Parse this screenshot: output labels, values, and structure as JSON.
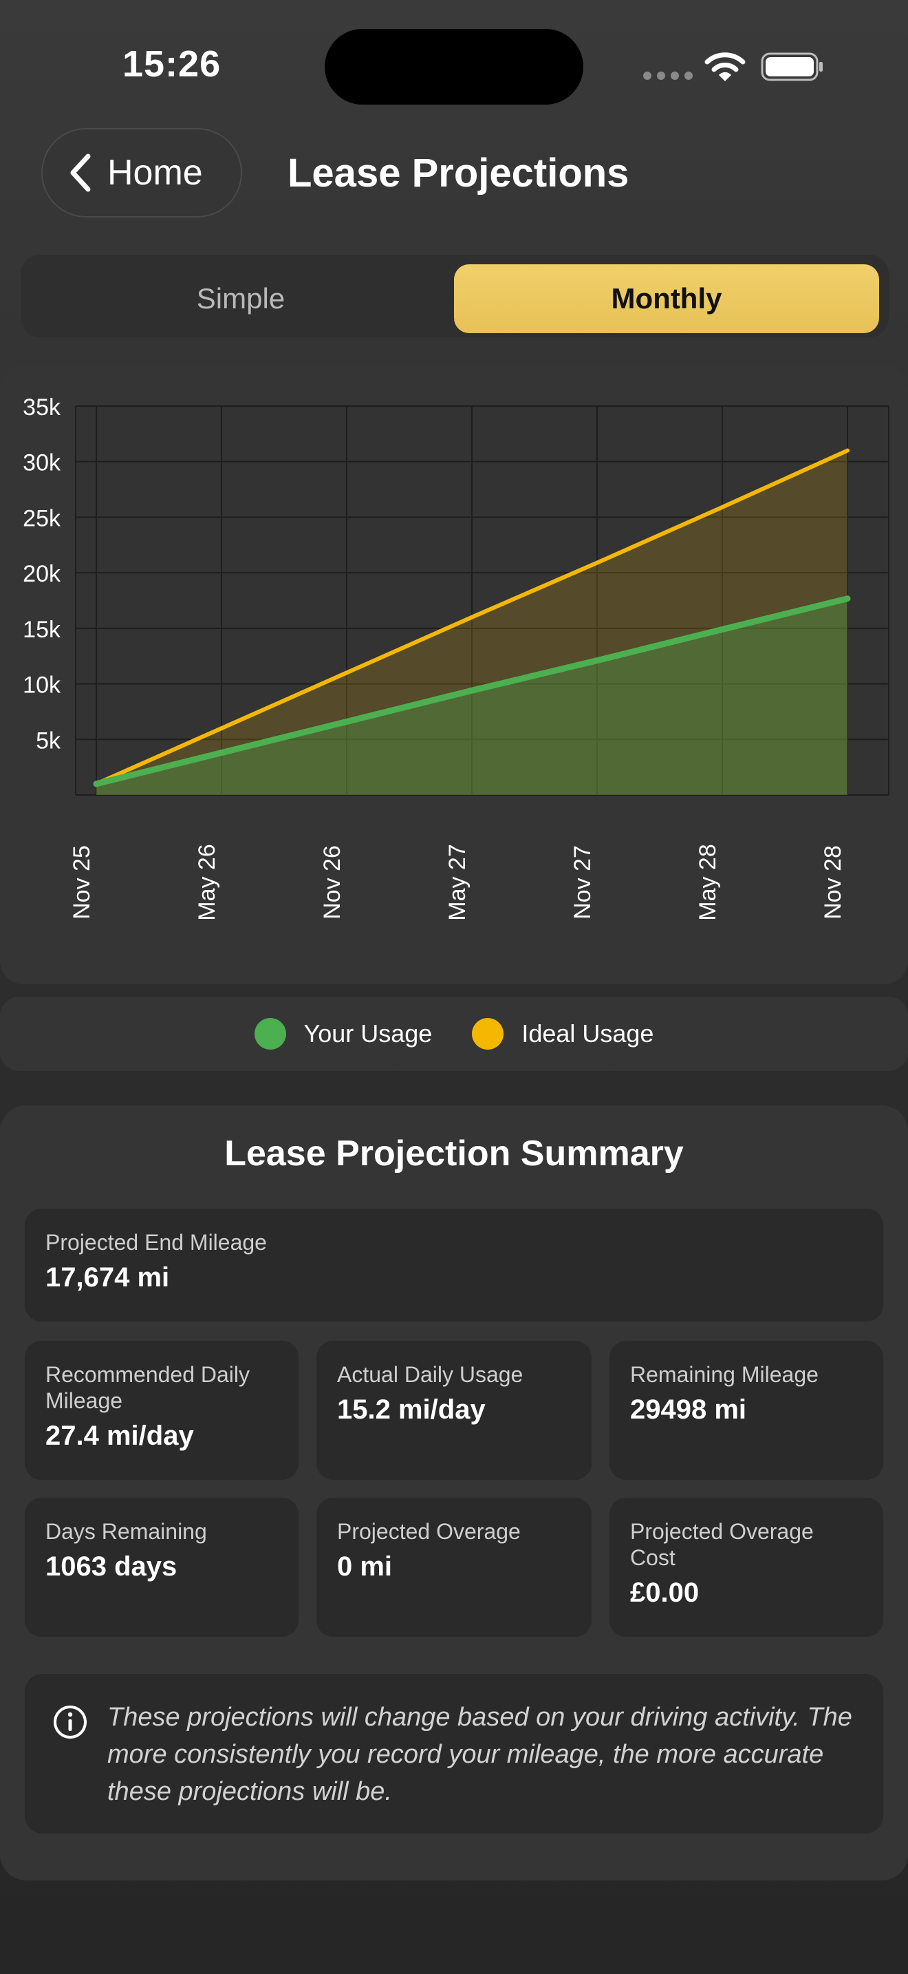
{
  "status_bar": {
    "time": "15:26"
  },
  "header": {
    "back_label": "Home",
    "title": "Lease Projections"
  },
  "segmented": {
    "options": [
      "Simple",
      "Monthly"
    ],
    "selected": "Monthly"
  },
  "colors": {
    "accent": "#E9C55C",
    "your_usage": "#4CAF50",
    "ideal_usage": "#F5B800",
    "card": "#353535",
    "tile": "#2A2A2A"
  },
  "chart_data": {
    "type": "area",
    "x": [
      "Nov 25",
      "May 26",
      "Nov 26",
      "May 27",
      "Nov 27",
      "May 28",
      "Nov 28"
    ],
    "ylim": [
      0,
      35000
    ],
    "y_ticks": [
      "5k",
      "10k",
      "15k",
      "20k",
      "25k",
      "30k",
      "35k"
    ],
    "grid": true,
    "legend": "bottom",
    "series": [
      {
        "name": "Your Usage",
        "color": "#4CAF50",
        "values": [
          1000,
          3800,
          6600,
          9400,
          12100,
          14900,
          17674
        ]
      },
      {
        "name": "Ideal Usage",
        "color": "#F5B800",
        "values": [
          1000,
          6000,
          11000,
          16000,
          20900,
          25900,
          31000
        ]
      }
    ]
  },
  "summary": {
    "title": "Lease Projection Summary",
    "projected_end": {
      "label": "Projected End Mileage",
      "value": "17,674 mi"
    },
    "tiles": [
      {
        "label": "Recommended Daily Mileage",
        "value": "27.4 mi/day"
      },
      {
        "label": "Actual Daily Usage",
        "value": "15.2 mi/day"
      },
      {
        "label": "Remaining Mileage",
        "value": "29498 mi"
      },
      {
        "label": "Days Remaining",
        "value": "1063 days"
      },
      {
        "label": "Projected Overage",
        "value": "0 mi"
      },
      {
        "label": "Projected Overage Cost",
        "value": "£0.00"
      }
    ],
    "info_icon": "info-circle-icon",
    "info_text": "These projections will change based on your driving activity. The more consistently you record your mileage, the more accurate these projections will be."
  }
}
